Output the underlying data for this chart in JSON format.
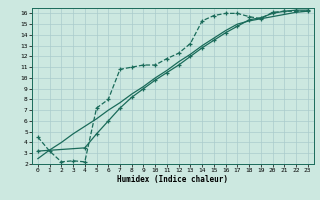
{
  "xlabel": "Humidex (Indice chaleur)",
  "bg_color": "#cce8e0",
  "grid_color": "#aacccc",
  "line_color": "#1a6b5a",
  "xlim": [
    -0.5,
    23.5
  ],
  "ylim": [
    2,
    16.5
  ],
  "xticks": [
    0,
    1,
    2,
    3,
    4,
    5,
    6,
    7,
    8,
    9,
    10,
    11,
    12,
    13,
    14,
    15,
    16,
    17,
    18,
    19,
    20,
    21,
    22,
    23
  ],
  "yticks": [
    2,
    3,
    4,
    5,
    6,
    7,
    8,
    9,
    10,
    11,
    12,
    13,
    14,
    15,
    16
  ],
  "line1_x": [
    0,
    1,
    2,
    3,
    4,
    5,
    6,
    7,
    8,
    9,
    10,
    11,
    12,
    13,
    14,
    15,
    16,
    17,
    18,
    19,
    20,
    21,
    22,
    23
  ],
  "line1_y": [
    4.5,
    3.2,
    2.2,
    2.3,
    2.2,
    7.2,
    8.0,
    10.8,
    11.0,
    11.2,
    11.2,
    11.8,
    12.3,
    13.2,
    15.3,
    15.8,
    16.0,
    16.0,
    15.7,
    15.5,
    16.1,
    16.2,
    16.2,
    16.2
  ],
  "line2_x": [
    0,
    4,
    5,
    6,
    7,
    8,
    9,
    10,
    11,
    12,
    13,
    14,
    15,
    16,
    17,
    18,
    19,
    20,
    21,
    22,
    23
  ],
  "line2_y": [
    3.2,
    3.5,
    4.8,
    6.0,
    7.2,
    8.2,
    9.0,
    9.8,
    10.5,
    11.2,
    12.0,
    12.8,
    13.5,
    14.2,
    14.8,
    15.4,
    15.6,
    16.0,
    16.2,
    16.3,
    16.3
  ],
  "line3_x": [
    0,
    1,
    2,
    3,
    4,
    5,
    6,
    7,
    8,
    9,
    10,
    11,
    12,
    13,
    14,
    15,
    16,
    17,
    18,
    19,
    20,
    21,
    22,
    23
  ],
  "line3_y": [
    2.5,
    3.3,
    4.0,
    4.8,
    5.5,
    6.2,
    7.0,
    7.7,
    8.5,
    9.2,
    10.0,
    10.7,
    11.5,
    12.2,
    13.0,
    13.7,
    14.4,
    15.0,
    15.3,
    15.5,
    15.7,
    15.9,
    16.1,
    16.2
  ]
}
